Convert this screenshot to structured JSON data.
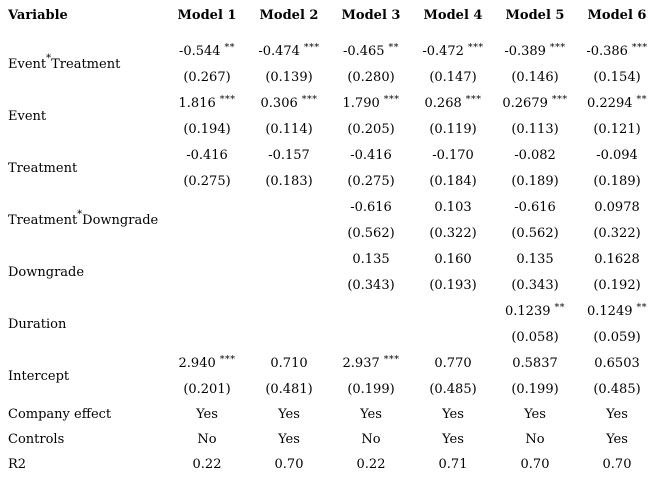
{
  "table": {
    "header": {
      "variable": "Variable",
      "models": [
        "Model 1",
        "Model 2",
        "Model 3",
        "Model 4",
        "Model 5",
        "Model 6"
      ]
    },
    "rows": [
      {
        "label": {
          "pre": "Event",
          "sup": "*",
          "post": "Treatment"
        },
        "cells": [
          {
            "coef": "-0.544",
            "stars": "**",
            "se": "(0.267)"
          },
          {
            "coef": "-0.474",
            "stars": "***",
            "se": "(0.139)"
          },
          {
            "coef": "-0.465",
            "stars": "**",
            "se": "(0.280)"
          },
          {
            "coef": "-0.472",
            "stars": "***",
            "se": "(0.147)"
          },
          {
            "coef": "-0.389",
            "stars": "***",
            "se": "(0.146)"
          },
          {
            "coef": "-0.386",
            "stars": "***",
            "se": "(0.154)"
          }
        ]
      },
      {
        "label": {
          "pre": "Event",
          "sup": "",
          "post": ""
        },
        "cells": [
          {
            "coef": "1.816",
            "stars": "***",
            "se": "(0.194)"
          },
          {
            "coef": "0.306",
            "stars": "***",
            "se": "(0.114)"
          },
          {
            "coef": "1.790",
            "stars": "***",
            "se": "(0.205)"
          },
          {
            "coef": "0.268",
            "stars": "***",
            "se": "(0.119)"
          },
          {
            "coef": "0.2679",
            "stars": "***",
            "se": "(0.113)"
          },
          {
            "coef": "0.2294",
            "stars": "**",
            "se": "(0.121)"
          }
        ]
      },
      {
        "label": {
          "pre": "Treatment",
          "sup": "",
          "post": ""
        },
        "cells": [
          {
            "coef": "-0.416",
            "stars": "",
            "se": "(0.275)"
          },
          {
            "coef": "-0.157",
            "stars": "",
            "se": "(0.183)"
          },
          {
            "coef": "-0.416",
            "stars": "",
            "se": "(0.275)"
          },
          {
            "coef": "-0.170",
            "stars": "",
            "se": "(0.184)"
          },
          {
            "coef": "-0.082",
            "stars": "",
            "se": "(0.189)"
          },
          {
            "coef": "-0.094",
            "stars": "",
            "se": "(0.189)"
          }
        ]
      },
      {
        "label": {
          "pre": "Treatment",
          "sup": "*",
          "post": "Downgrade"
        },
        "cells": [
          {
            "coef": "",
            "stars": "",
            "se": ""
          },
          {
            "coef": "",
            "stars": "",
            "se": ""
          },
          {
            "coef": "-0.616",
            "stars": "",
            "se": "(0.562)"
          },
          {
            "coef": "0.103",
            "stars": "",
            "se": "(0.322)"
          },
          {
            "coef": "-0.616",
            "stars": "",
            "se": "(0.562)"
          },
          {
            "coef": "0.0978",
            "stars": "",
            "se": "(0.322)"
          }
        ]
      },
      {
        "label": {
          "pre": "Downgrade",
          "sup": "",
          "post": ""
        },
        "cells": [
          {
            "coef": "",
            "stars": "",
            "se": ""
          },
          {
            "coef": "",
            "stars": "",
            "se": ""
          },
          {
            "coef": "0.135",
            "stars": "",
            "se": "(0.343)"
          },
          {
            "coef": "0.160",
            "stars": "",
            "se": "(0.193)"
          },
          {
            "coef": "0.135",
            "stars": "",
            "se": "(0.343)"
          },
          {
            "coef": "0.1628",
            "stars": "",
            "se": "(0.192)"
          }
        ]
      },
      {
        "label": {
          "pre": "Duration",
          "sup": "",
          "post": ""
        },
        "cells": [
          {
            "coef": "",
            "stars": "",
            "se": ""
          },
          {
            "coef": "",
            "stars": "",
            "se": ""
          },
          {
            "coef": "",
            "stars": "",
            "se": ""
          },
          {
            "coef": "",
            "stars": "",
            "se": ""
          },
          {
            "coef": "0.1239",
            "stars": "**",
            "se": "(0.058)"
          },
          {
            "coef": "0.1249",
            "stars": "**",
            "se": "(0.059)"
          }
        ]
      },
      {
        "label": {
          "pre": "Intercept",
          "sup": "",
          "post": ""
        },
        "cells": [
          {
            "coef": "2.940",
            "stars": "***",
            "se": "(0.201)"
          },
          {
            "coef": "0.710",
            "stars": "",
            "se": "(0.481)"
          },
          {
            "coef": "2.937",
            "stars": "***",
            "se": "(0.199)"
          },
          {
            "coef": "0.770",
            "stars": "",
            "se": "(0.485)"
          },
          {
            "coef": "0.5837",
            "stars": "",
            "se": "(0.199)"
          },
          {
            "coef": "0.6503",
            "stars": "",
            "se": "(0.485)"
          }
        ]
      }
    ],
    "footer": [
      {
        "label": "Company effect",
        "values": [
          "Yes",
          "Yes",
          "Yes",
          "Yes",
          "Yes",
          "Yes"
        ]
      },
      {
        "label": "Controls",
        "values": [
          "No",
          "Yes",
          "No",
          "Yes",
          "No",
          "Yes"
        ]
      },
      {
        "label": "R2",
        "values": [
          "0.22",
          "0.70",
          "0.22",
          "0.71",
          "0.70",
          "0.70"
        ]
      }
    ]
  }
}
